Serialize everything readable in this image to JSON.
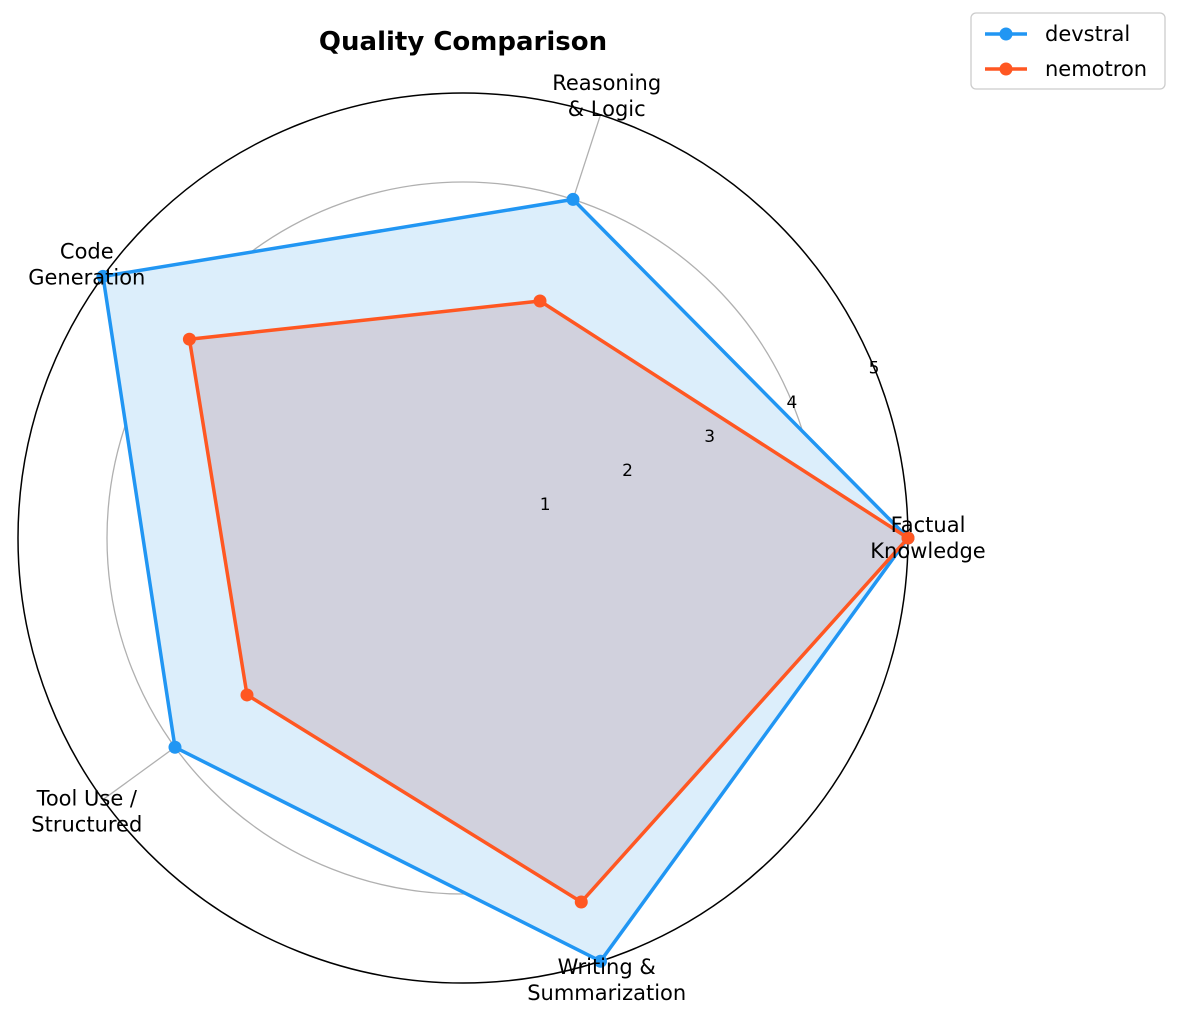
{
  "chart_data": {
    "type": "radar",
    "title": "Quality Comparison",
    "categories": [
      "Factual\nKnowledge",
      "Reasoning\n& Logic",
      "Code\nGeneration",
      "Tool Use /\nStructured",
      "Writing &\nSummarization"
    ],
    "series": [
      {
        "name": "devstral",
        "values": [
          5.0,
          4.0,
          5.0,
          4.0,
          5.0
        ],
        "color": "#2196F3",
        "fill": "#DCEEFB"
      },
      {
        "name": "nemotron",
        "values": [
          5.0,
          2.8,
          3.8,
          3.0,
          4.3
        ],
        "color": "#FF5722",
        "fill": "#A0505A"
      }
    ],
    "r_ticks": [
      1,
      2,
      3,
      4,
      5
    ],
    "r_range": [
      0,
      5
    ],
    "grid": true,
    "legend_position": "top-right"
  }
}
